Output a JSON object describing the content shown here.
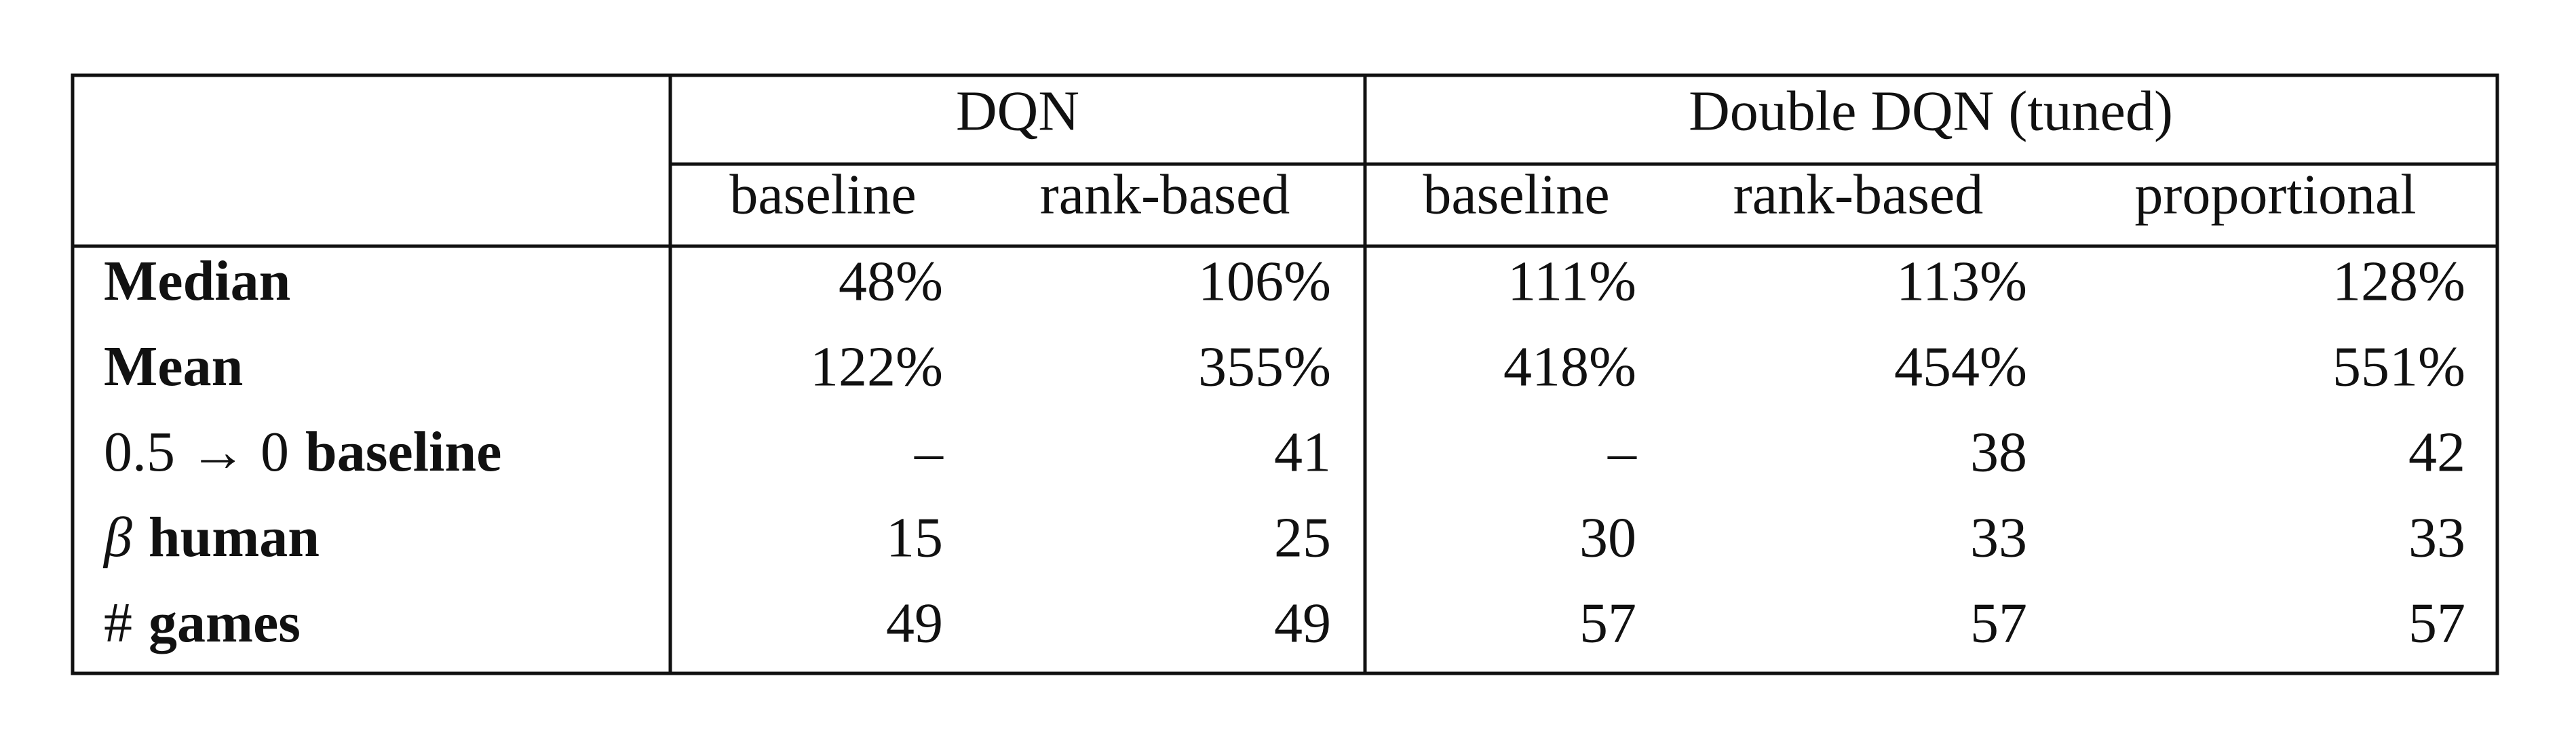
{
  "table": {
    "groups": [
      "DQN",
      "Double DQN (tuned)"
    ],
    "columns": [
      "baseline",
      "rank-based",
      "baseline",
      "rank-based",
      "proportional"
    ],
    "rows": [
      {
        "label": "Median",
        "cells": [
          "48%",
          "106%",
          "111%",
          "113%",
          "128%"
        ]
      },
      {
        "label": "Mean",
        "cells": [
          "122%",
          "355%",
          "418%",
          "454%",
          "551%"
        ]
      },
      {
        "prefix": "0.5 → 0",
        "label": "baseline",
        "cells": [
          "–",
          "41",
          "–",
          "38",
          "42"
        ]
      },
      {
        "prefix": "β",
        "label": "human",
        "cells": [
          "15",
          "25",
          "30",
          "33",
          "33"
        ]
      },
      {
        "prefix": "#",
        "label": "games",
        "cells": [
          "49",
          "49",
          "57",
          "57",
          "57"
        ]
      }
    ]
  }
}
